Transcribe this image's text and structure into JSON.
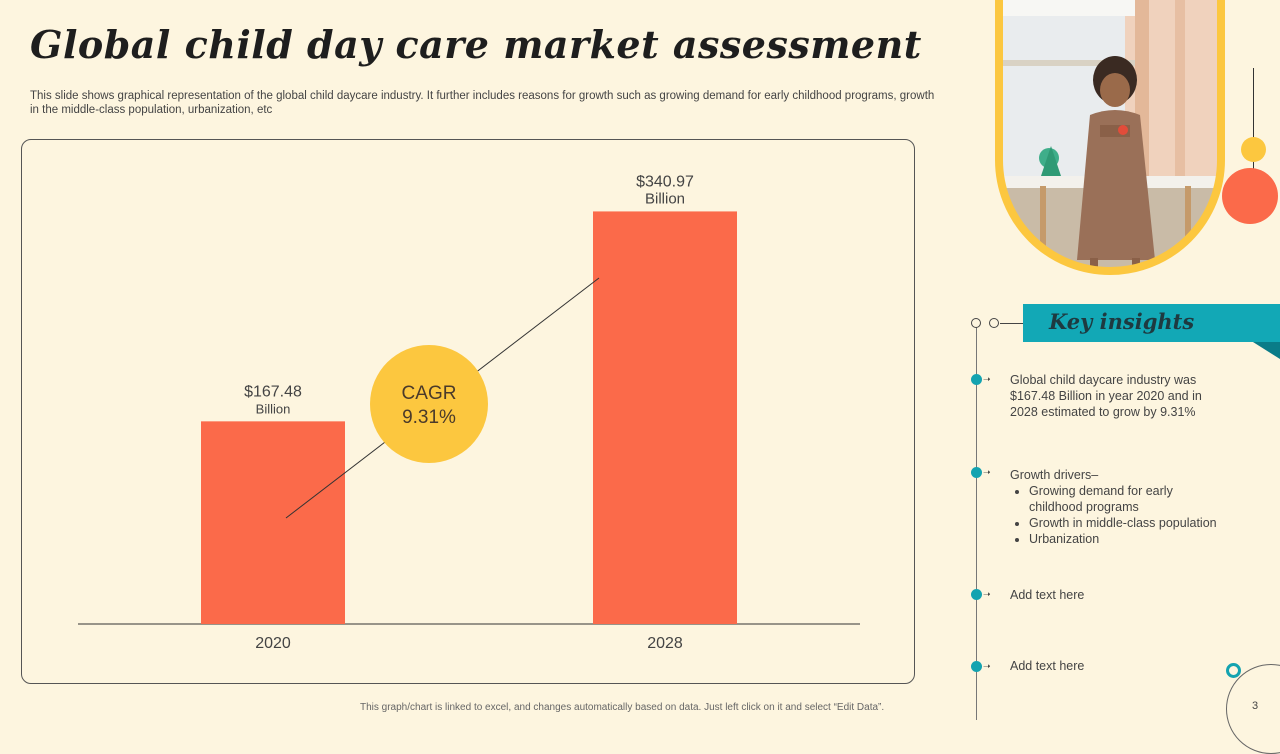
{
  "title": "Global child day care market assessment",
  "subtitle": "This slide shows graphical representation of the global child daycare industry. It further includes reasons for growth such as growing demand for early childhood programs, growth in the middle-class population, urbanization, etc",
  "chart_data": {
    "type": "bar",
    "categories": [
      "2020",
      "2028"
    ],
    "values": [
      167.48,
      340.97
    ],
    "value_labels": [
      [
        "$167.48",
        "Billion"
      ],
      [
        "$340.97",
        "Billion"
      ]
    ],
    "title": "",
    "xlabel": "",
    "ylabel": "",
    "ylim": [
      0,
      400
    ],
    "grid": false,
    "annotation": {
      "line1": "CAGR",
      "line2": "9.31%"
    },
    "colors": {
      "bar": "#fb6a4a",
      "badge": "#fcc73f"
    }
  },
  "footer_note": "This graph/chart is linked to excel, and changes automatically based on data. Just left click on it and select “Edit Data”.",
  "page_number": "3",
  "photo": {
    "icon": "child-playing-photo"
  },
  "insights": {
    "heading": "Key insights",
    "item1": "Global child daycare industry was $167.48 Billion in year 2020 and in 2028 estimated to grow by 9.31%",
    "item2_intro": "Growth drivers–",
    "item2_bullets": [
      "Growing demand for early childhood programs",
      "Growth in middle-class population",
      "Urbanization"
    ],
    "item3": "Add text here",
    "item4": "Add text here"
  },
  "colors": {
    "accent_teal": "#14a3b0",
    "accent_red": "#fb6a4a",
    "accent_yellow": "#fcc73f",
    "background": "#fdf5df"
  }
}
